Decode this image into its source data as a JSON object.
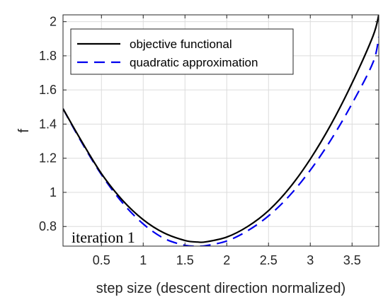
{
  "chart_data": {
    "type": "line",
    "title": "",
    "xlabel": "step size (descent direction normalized)",
    "ylabel": "f",
    "xlim": [
      0.04,
      3.82
    ],
    "ylim": [
      0.685,
      2.04
    ],
    "xticks": [
      0.5,
      1,
      1.5,
      2,
      2.5,
      3,
      3.5
    ],
    "xtick_labels": [
      "0.5",
      "1",
      "1.5",
      "2",
      "2.5",
      "3",
      "3.5"
    ],
    "yticks": [
      0.8,
      1,
      1.2,
      1.4,
      1.6,
      1.8,
      2
    ],
    "ytick_labels": [
      "0.8",
      "1",
      "1.2",
      "1.4",
      "1.6",
      "1.8",
      "2"
    ],
    "grid": true,
    "legend_position": "top-left",
    "annotation": "iteration 1",
    "series": [
      {
        "name": "objective functional",
        "color": "#000000",
        "style": "solid",
        "x": [
          0.04,
          0.25,
          0.5,
          0.75,
          1.0,
          1.25,
          1.5,
          1.65,
          1.75,
          2.0,
          2.25,
          2.5,
          2.75,
          3.0,
          3.25,
          3.5,
          3.75,
          3.82
        ],
        "y": [
          1.49,
          1.31,
          1.11,
          0.955,
          0.84,
          0.762,
          0.718,
          0.709,
          0.71,
          0.738,
          0.8,
          0.893,
          1.025,
          1.195,
          1.4,
          1.64,
          1.915,
          2.04
        ]
      },
      {
        "name": "quadratic approximation",
        "color": "#0000ee",
        "style": "dashed",
        "x": [
          0.04,
          0.25,
          0.5,
          0.75,
          1.0,
          1.25,
          1.5,
          1.65,
          1.75,
          2.0,
          2.25,
          2.5,
          2.75,
          3.0,
          3.25,
          3.5,
          3.75,
          3.82
        ],
        "y": [
          1.49,
          1.304,
          1.104,
          0.94,
          0.815,
          0.73,
          0.69,
          0.685,
          0.688,
          0.715,
          0.775,
          0.862,
          0.98,
          1.13,
          1.31,
          1.52,
          1.76,
          1.91
        ]
      }
    ]
  }
}
